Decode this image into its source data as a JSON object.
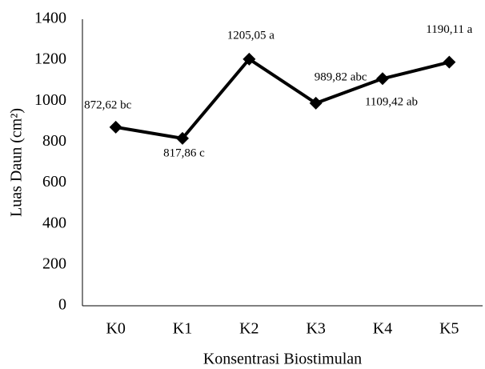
{
  "chart_data": {
    "type": "line",
    "x_label": "Konsentrasi Biostimulan",
    "y_label": "Luas Daun (cm²)",
    "categories": [
      "K0",
      "K1",
      "K2",
      "K3",
      "K4",
      "K5"
    ],
    "series": [
      {
        "name": "Luas Daun",
        "color": "#000000",
        "values": [
          872.62,
          817.86,
          1205.05,
          989.82,
          1109.42,
          1190.11
        ],
        "value_labels": [
          "872,62 bc",
          "817,86 c",
          "1205,05 a",
          "989,82 abc",
          "1109,42 ab",
          "1190,11 a"
        ]
      }
    ],
    "ylim": [
      0,
      1400
    ],
    "yticks": [
      0,
      200,
      400,
      600,
      800,
      1000,
      1200,
      1400
    ],
    "grid": false,
    "marker": "diamond"
  }
}
